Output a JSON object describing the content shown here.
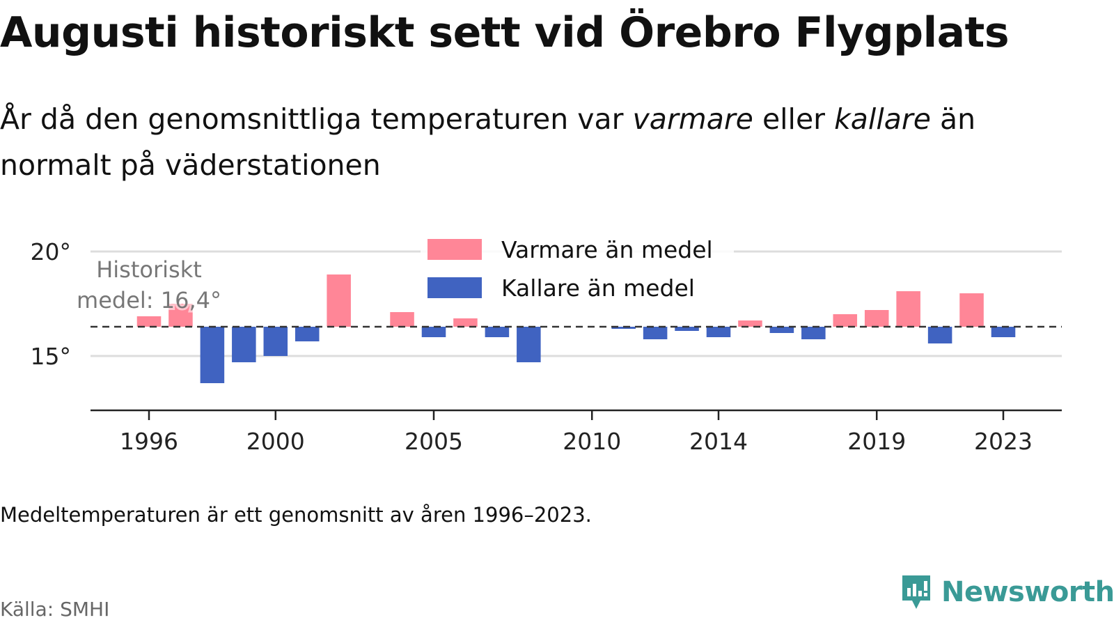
{
  "title": "Augusti historiskt sett vid Örebro Flygplats",
  "subtitle": {
    "part1": "År då den genomsnittliga temperaturen var ",
    "em1": "varmare",
    "part2": " eller ",
    "em2": "kallare",
    "part3": " än normalt på väderstationen"
  },
  "note": "Medeltemperaturen är ett genomsnitt av åren 1996–2023.",
  "source": "Källa: SMHI",
  "brand": "Newsworthy",
  "colors": {
    "warm": "#ff8697",
    "cold": "#4063c1",
    "text": "#111111",
    "grid": "#dddddd",
    "brand": "#3a9a96"
  },
  "chart_data": {
    "type": "bar",
    "baseline": 16.4,
    "ylim": [
      12.4,
      20.7
    ],
    "yticks": [
      15,
      20
    ],
    "ytick_labels": [
      "15°",
      "20°"
    ],
    "xticks": [
      1996,
      2000,
      2005,
      2010,
      2014,
      2019,
      2023
    ],
    "xtick_labels": [
      "1996",
      "2000",
      "2005",
      "2010",
      "2014",
      "2019",
      "2023"
    ],
    "baseline_label": [
      "Historiskt",
      "medel: 16,4°"
    ],
    "legend": {
      "warm": "Varmare än medel",
      "cold": "Kallare än medel",
      "position": "top-center"
    },
    "grid": true,
    "x": [
      1996,
      1997,
      1998,
      1999,
      2000,
      2001,
      2002,
      2003,
      2004,
      2005,
      2006,
      2007,
      2008,
      2009,
      2010,
      2011,
      2012,
      2013,
      2014,
      2015,
      2016,
      2017,
      2018,
      2019,
      2020,
      2021,
      2022,
      2023
    ],
    "values": [
      16.9,
      17.5,
      13.7,
      14.7,
      15.0,
      15.7,
      18.9,
      null,
      17.1,
      15.9,
      16.8,
      15.9,
      14.7,
      null,
      null,
      16.3,
      15.8,
      16.2,
      15.9,
      16.7,
      16.1,
      15.8,
      17.0,
      17.2,
      18.1,
      15.6,
      18.0,
      15.9
    ]
  }
}
